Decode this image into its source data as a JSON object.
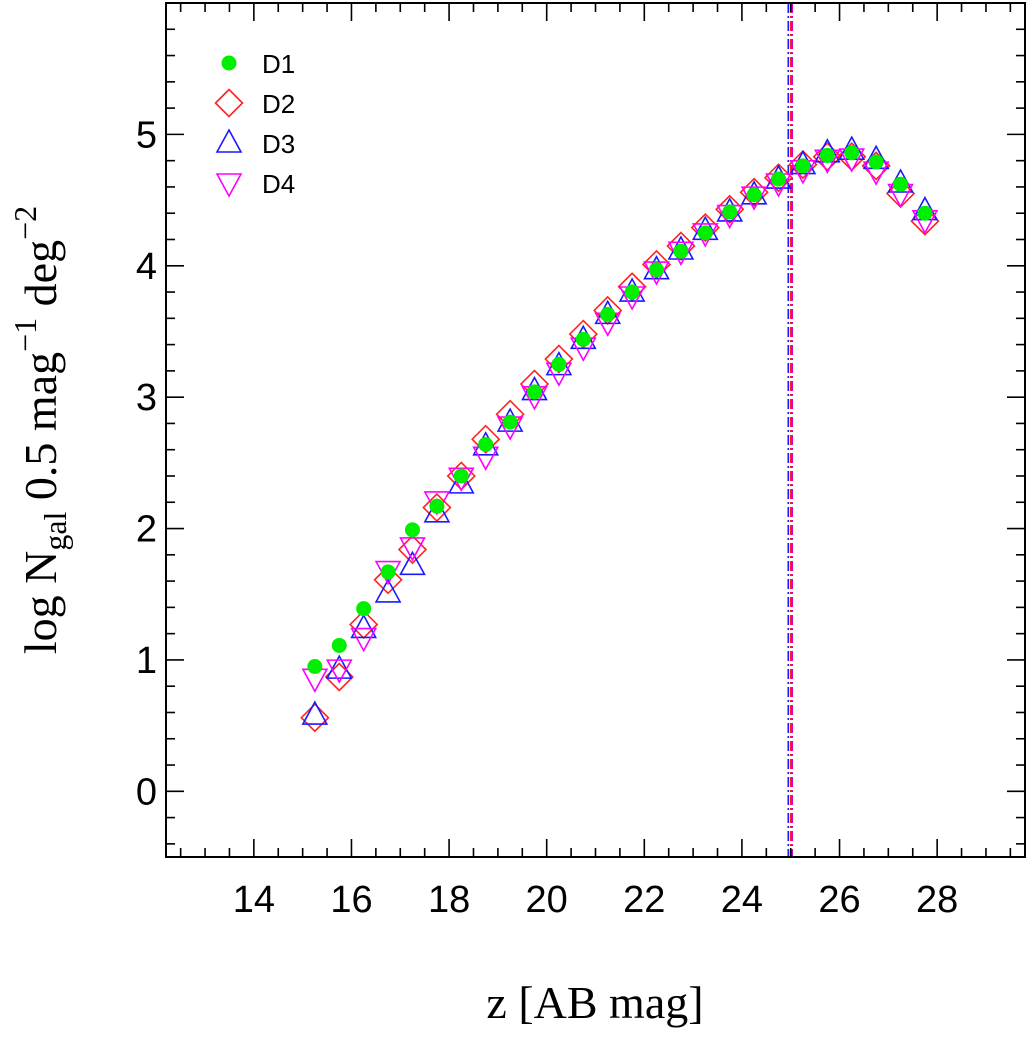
{
  "chart_data": {
    "type": "scatter",
    "xlabel": "z [AB mag]",
    "ylabel": {
      "base": "log N",
      "sub": "gal",
      "mid": " 0.5 mag",
      "sup1": "−1",
      "mid2": " deg",
      "sup2": "−2"
    },
    "xlim": [
      12.2,
      29.8
    ],
    "ylim": [
      -0.5,
      6.0
    ],
    "x_ticks": [
      14,
      16,
      18,
      20,
      22,
      24,
      26,
      28
    ],
    "y_ticks": [
      0,
      1,
      2,
      3,
      4,
      5
    ],
    "legend_position": "top-left",
    "vlines": [
      {
        "x": 24.95,
        "color": "#1a1aff"
      },
      {
        "x": 25.0,
        "color": "#ff2222"
      },
      {
        "x": 25.03,
        "color": "#cc00cc"
      }
    ],
    "series": [
      {
        "name": "D1",
        "marker": "filled-circle",
        "color": "#00ee00",
        "x": [
          15.25,
          15.75,
          16.25,
          16.75,
          17.25,
          17.75,
          18.25,
          18.75,
          19.25,
          19.75,
          20.25,
          20.75,
          21.25,
          21.75,
          22.25,
          22.75,
          23.25,
          23.75,
          24.25,
          24.75,
          25.25,
          25.75,
          26.25,
          26.75,
          27.25,
          27.75
        ],
        "y": [
          0.95,
          1.11,
          1.39,
          1.67,
          1.99,
          2.17,
          2.4,
          2.64,
          2.81,
          3.04,
          3.25,
          3.44,
          3.63,
          3.8,
          3.97,
          4.11,
          4.25,
          4.41,
          4.54,
          4.66,
          4.76,
          4.84,
          4.86,
          4.79,
          4.62,
          4.4
        ]
      },
      {
        "name": "D2",
        "marker": "open-diamond",
        "color": "#ff2222",
        "x": [
          15.25,
          15.75,
          16.25,
          16.75,
          17.25,
          17.75,
          18.25,
          18.75,
          19.25,
          19.75,
          20.25,
          20.75,
          21.25,
          21.75,
          22.25,
          22.75,
          23.25,
          23.75,
          24.25,
          24.75,
          25.25,
          25.75,
          26.25,
          26.75,
          27.25,
          27.75
        ],
        "y": [
          0.56,
          0.87,
          1.27,
          1.61,
          1.84,
          2.16,
          2.4,
          2.68,
          2.87,
          3.1,
          3.29,
          3.48,
          3.66,
          3.84,
          4.01,
          4.15,
          4.29,
          4.43,
          4.56,
          4.67,
          4.77,
          4.83,
          4.83,
          4.76,
          4.55,
          4.34
        ]
      },
      {
        "name": "D3",
        "marker": "open-triangle-up",
        "color": "#1a1aff",
        "x": [
          15.25,
          15.75,
          16.25,
          16.75,
          17.25,
          17.75,
          18.25,
          18.75,
          19.25,
          19.75,
          20.25,
          20.75,
          21.25,
          21.75,
          22.25,
          22.75,
          23.25,
          23.75,
          24.25,
          24.75,
          25.25,
          25.75,
          26.25,
          26.75,
          27.25,
          27.75
        ],
        "y": [
          0.58,
          0.93,
          1.24,
          1.51,
          1.72,
          2.12,
          2.34,
          2.63,
          2.81,
          3.05,
          3.24,
          3.44,
          3.63,
          3.8,
          3.97,
          4.12,
          4.27,
          4.41,
          4.54,
          4.66,
          4.77,
          4.86,
          4.88,
          4.81,
          4.63,
          4.42
        ]
      },
      {
        "name": "D4",
        "marker": "open-triangle-down",
        "color": "#ff00ff",
        "x": [
          15.25,
          15.75,
          16.25,
          16.75,
          17.25,
          17.75,
          18.25,
          18.75,
          19.25,
          19.75,
          20.25,
          20.75,
          21.25,
          21.75,
          22.25,
          22.75,
          23.25,
          23.75,
          24.25,
          24.75,
          25.25,
          25.75,
          26.25,
          26.75,
          27.25,
          27.75
        ],
        "y": [
          0.86,
          0.93,
          1.17,
          1.68,
          1.86,
          2.21,
          2.39,
          2.55,
          2.78,
          3.01,
          3.19,
          3.38,
          3.57,
          3.77,
          3.96,
          4.11,
          4.25,
          4.39,
          4.53,
          4.63,
          4.73,
          4.81,
          4.82,
          4.72,
          4.55,
          4.35
        ]
      }
    ]
  }
}
